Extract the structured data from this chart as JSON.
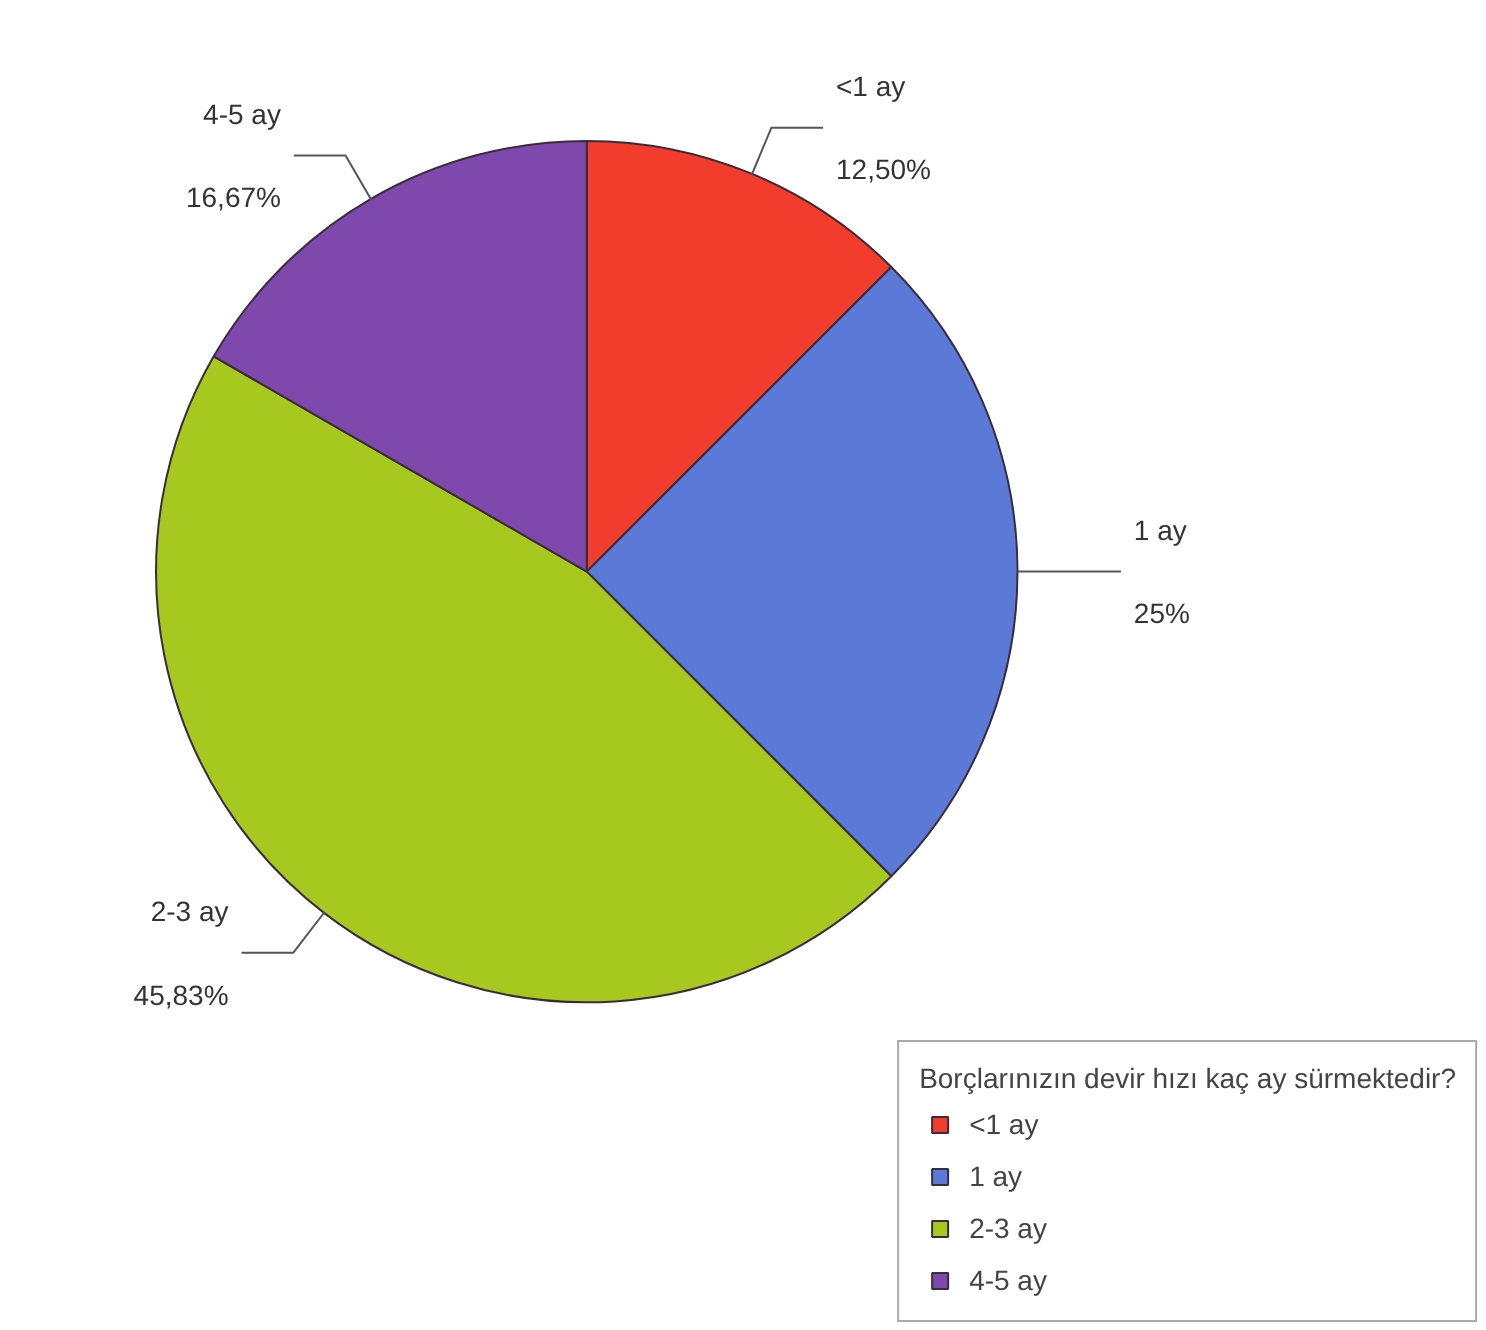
{
  "chart_data": {
    "type": "pie",
    "legend_title": "Borçlarınızın devir hızı kaç ay sürmektedir?",
    "categories": [
      "<1 ay",
      "1 ay",
      "2-3 ay",
      "4-5 ay"
    ],
    "values": [
      12.5,
      25,
      45.83,
      16.67
    ],
    "value_labels": [
      "12,50%",
      "25%",
      "45,83%",
      "16,67%"
    ],
    "colors": [
      "#f23d2c",
      "#5b79d6",
      "#a6c81f",
      "#7e48ad"
    ],
    "legend": "bottom right"
  }
}
